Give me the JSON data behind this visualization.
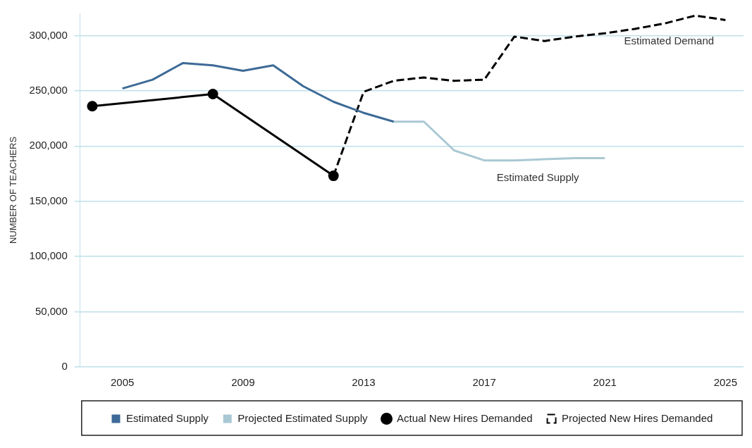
{
  "chart_data": {
    "type": "line",
    "ylabel": "NUMBER OF TEACHERS",
    "xlim": [
      2003.6,
      2025.6
    ],
    "xticks": [
      2005,
      2009,
      2013,
      2017,
      2021,
      2025
    ],
    "ylim": [
      0,
      320000
    ],
    "yticks": [
      {
        "value": 0,
        "label": "0"
      },
      {
        "value": 50000,
        "label": "50,000"
      },
      {
        "value": 100000,
        "label": "100,000"
      },
      {
        "value": 150000,
        "label": "150,000"
      },
      {
        "value": 200000,
        "label": "200,000"
      },
      {
        "value": 250000,
        "label": "250,000"
      },
      {
        "value": 300000,
        "label": "300,000"
      }
    ],
    "grid": "y",
    "legend": "bottom",
    "series": [
      {
        "name": "Estimated Supply",
        "color": "#3d6a96",
        "marker": "none",
        "line_style": "solid",
        "x": [
          2005,
          2006,
          2007,
          2008,
          2009,
          2010,
          2011,
          2012,
          2013,
          2014
        ],
        "values": [
          252000,
          260000,
          275000,
          273000,
          268000,
          273000,
          254000,
          240000,
          230000,
          222000
        ]
      },
      {
        "name": "Projected Estimated Supply",
        "color": "#a9c8d3",
        "marker": "none",
        "line_style": "solid",
        "x": [
          2014,
          2015,
          2016,
          2017,
          2018,
          2019,
          2020,
          2021
        ],
        "values": [
          222000,
          222000,
          196000,
          187000,
          187000,
          188000,
          189000,
          189000
        ]
      },
      {
        "name": "Actual New Hires Demanded",
        "color": "#000000",
        "marker": "circle",
        "line_style": "solid",
        "x": [
          2004,
          2008,
          2012
        ],
        "values": [
          236000,
          247000,
          173000
        ]
      },
      {
        "name": "Projected New Hires Demanded",
        "color": "#000000",
        "marker": "none",
        "line_style": "dashed",
        "x": [
          2012,
          2013,
          2014,
          2015,
          2016,
          2017,
          2018,
          2019,
          2020,
          2021,
          2022,
          2023,
          2024,
          2025
        ],
        "values": [
          173000,
          249000,
          259000,
          262000,
          259000,
          260000,
          299000,
          295000,
          299000,
          302000,
          306000,
          311000,
          318000,
          314000
        ]
      }
    ],
    "annotations": [
      "Estimated Demand",
      "Estimated Supply"
    ]
  }
}
